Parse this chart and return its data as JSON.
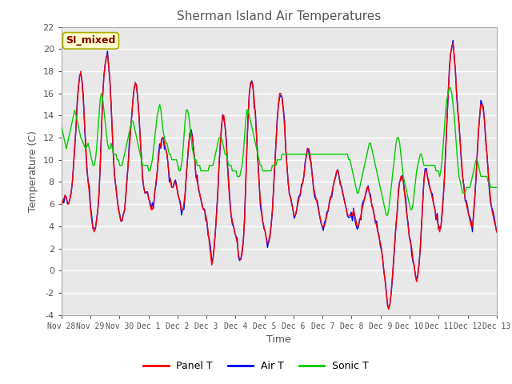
{
  "title": "Sherman Island Air Temperatures",
  "xlabel": "Time",
  "ylabel": "Temperature (C)",
  "ylim": [
    -4,
    22
  ],
  "yticks": [
    -4,
    -2,
    0,
    2,
    4,
    6,
    8,
    10,
    12,
    14,
    16,
    18,
    20,
    22
  ],
  "xtick_labels": [
    "Nov 28",
    "Nov 29",
    "Nov 30",
    "Dec 1",
    "Dec 2",
    "Dec 3",
    "Dec 4",
    "Dec 5",
    "Dec 6",
    "Dec 7",
    "Dec 8",
    "Dec 9",
    "Dec 10",
    "Dec 11",
    "Dec 12",
    "Dec 13"
  ],
  "watermark_text": "SI_mixed",
  "watermark_color": "#8B0000",
  "watermark_bg": "#FFFFCC",
  "plot_bg_color": "#E8E8E8",
  "panel_t_color": "#FF0000",
  "air_t_color": "#0000FF",
  "sonic_t_color": "#00CC00",
  "line_width": 1.0,
  "legend_labels": [
    "Panel T",
    "Air T",
    "Sonic T"
  ],
  "figsize": [
    6.4,
    4.8
  ],
  "dpi": 100,
  "title_color": "#555555",
  "tick_color": "#555555"
}
